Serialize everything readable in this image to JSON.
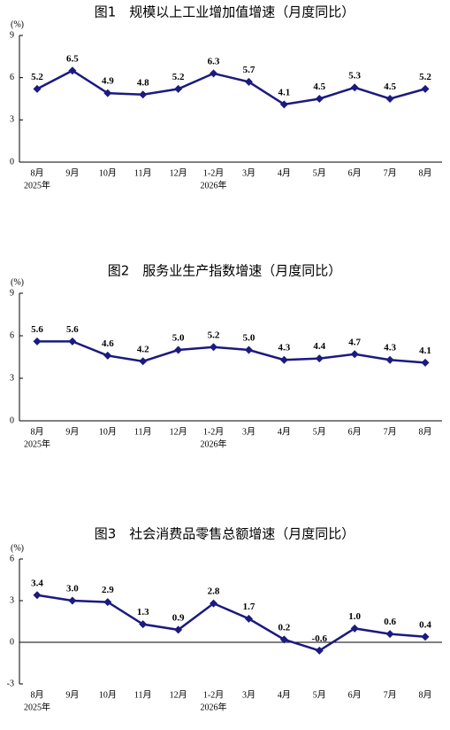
{
  "chart_data": [
    {
      "type": "line",
      "title": "图1　规模以上工业增加值增速（月度同比）",
      "unit_label": "(%)",
      "categories": [
        "8月",
        "9月",
        "10月",
        "11月",
        "12月",
        "1-2月",
        "3月",
        "4月",
        "5月",
        "6月",
        "7月",
        "8月"
      ],
      "x_sublabels": [
        "2025年",
        null,
        null,
        null,
        null,
        "2026年",
        null,
        null,
        null,
        null,
        null,
        null
      ],
      "series": [
        {
          "name": "规模以上工业增加值增速",
          "color": "#1a1a80",
          "values": [
            5.2,
            6.5,
            4.9,
            4.8,
            5.2,
            6.3,
            5.7,
            4.1,
            4.5,
            5.3,
            4.5,
            5.2
          ],
          "value_labels": [
            "5.2",
            "6.5",
            "4.9",
            "4.8",
            "5.2",
            "6.3",
            "5.7",
            "4.1",
            "4.5",
            "5.3",
            "4.5",
            "5.2"
          ]
        }
      ],
      "ylim": [
        0,
        9
      ],
      "yticks": [
        0,
        3,
        6,
        9
      ]
    },
    {
      "type": "line",
      "title": "图2　服务业生产指数增速（月度同比）",
      "unit_label": "(%)",
      "categories": [
        "8月",
        "9月",
        "10月",
        "11月",
        "12月",
        "1-2月",
        "3月",
        "4月",
        "5月",
        "6月",
        "7月",
        "8月"
      ],
      "x_sublabels": [
        "2025年",
        null,
        null,
        null,
        null,
        "2026年",
        null,
        null,
        null,
        null,
        null,
        null
      ],
      "series": [
        {
          "name": "服务业生产指数增速",
          "color": "#1a1a80",
          "values": [
            5.6,
            5.6,
            4.6,
            4.2,
            5.0,
            5.2,
            5.0,
            4.3,
            4.4,
            4.7,
            4.3,
            4.1
          ],
          "value_labels": [
            "5.6",
            "5.6",
            "4.6",
            "4.2",
            "5.0",
            "5.2",
            "5.0",
            "4.3",
            "4.4",
            "4.7",
            "4.3",
            "4.1"
          ]
        }
      ],
      "ylim": [
        0,
        9
      ],
      "yticks": [
        0,
        3,
        6,
        9
      ]
    },
    {
      "type": "line",
      "title": "图3　社会消费品零售总额增速（月度同比）",
      "unit_label": "(%)",
      "categories": [
        "8月",
        "9月",
        "10月",
        "11月",
        "12月",
        "1-2月",
        "3月",
        "4月",
        "5月",
        "6月",
        "7月",
        "8月"
      ],
      "x_sublabels": [
        "2025年",
        null,
        null,
        null,
        null,
        "2026年",
        null,
        null,
        null,
        null,
        null,
        null
      ],
      "series": [
        {
          "name": "社会消费品零售总额增速",
          "color": "#1a1a80",
          "values": [
            3.4,
            3.0,
            2.9,
            1.3,
            0.9,
            2.8,
            1.7,
            0.2,
            -0.6,
            1.0,
            0.6,
            0.4
          ],
          "value_labels": [
            "3.4",
            "3.0",
            "2.9",
            "1.3",
            "0.9",
            "2.8",
            "1.7",
            "0.2",
            "-0.6",
            "1.0",
            "0.6",
            "0.4"
          ]
        }
      ],
      "ylim": [
        -3,
        6
      ],
      "yticks": [
        -3,
        0,
        3,
        6
      ]
    }
  ]
}
